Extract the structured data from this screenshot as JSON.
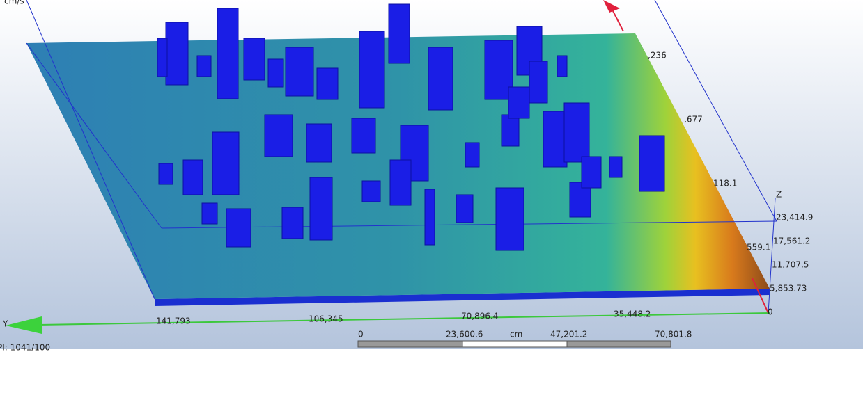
{
  "viewport": {
    "color_unit": "cm/s",
    "color_labels": [
      ",236",
      ",677",
      "118.1",
      "559.1"
    ]
  },
  "z_axis": {
    "name": "Z",
    "ticks": [
      "23,414.9",
      "17,561.2",
      "11,707.5",
      "5,853.73",
      "0"
    ]
  },
  "y_axis": {
    "name": "Y",
    "ticks": [
      "141,793",
      "106,345",
      "70,896.4",
      "35,448.2"
    ]
  },
  "scale_bar": {
    "ticks": [
      "0",
      "23,600.6",
      "47,201.2",
      "70,801.8"
    ],
    "unit": "cm"
  },
  "status": "PI: 1041/100"
}
